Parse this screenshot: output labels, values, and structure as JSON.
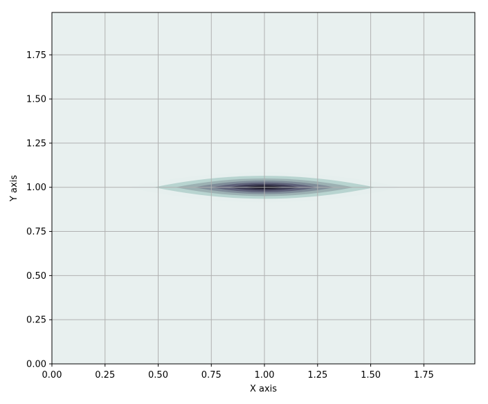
{
  "chart_data": {
    "type": "contour",
    "xlabel": "X axis",
    "ylabel": "Y axis",
    "xlim": [
      0,
      1.99
    ],
    "ylim": [
      0,
      1.99
    ],
    "xticks": [
      "0.00",
      "0.25",
      "0.50",
      "0.75",
      "1.00",
      "1.25",
      "1.50",
      "1.75"
    ],
    "yticks": [
      "0.00",
      "0.25",
      "0.50",
      "0.75",
      "1.00",
      "1.25",
      "1.50",
      "1.75"
    ],
    "grid": true,
    "peak": {
      "x": 1.0,
      "y": 1.0
    },
    "colormap": "bone_r",
    "levels": [
      {
        "half_width_x": 0.645,
        "half_height_y": 0.085,
        "color": "#e6efee"
      },
      {
        "half_width_x": 0.52,
        "half_height_y": 0.065,
        "color": "#b8d4d0"
      },
      {
        "half_width_x": 0.42,
        "half_height_y": 0.05,
        "color": "#9cb1b3"
      },
      {
        "half_width_x": 0.33,
        "half_height_y": 0.038,
        "color": "#7f8c99"
      },
      {
        "half_width_x": 0.25,
        "half_height_y": 0.028,
        "color": "#5f627a"
      },
      {
        "half_width_x": 0.17,
        "half_height_y": 0.018,
        "color": "#3b3a52"
      },
      {
        "half_width_x": 0.09,
        "half_height_y": 0.009,
        "color": "#1a1726"
      }
    ],
    "background_color": "#e8f0ef",
    "grid_color": "#b0b0b0"
  }
}
